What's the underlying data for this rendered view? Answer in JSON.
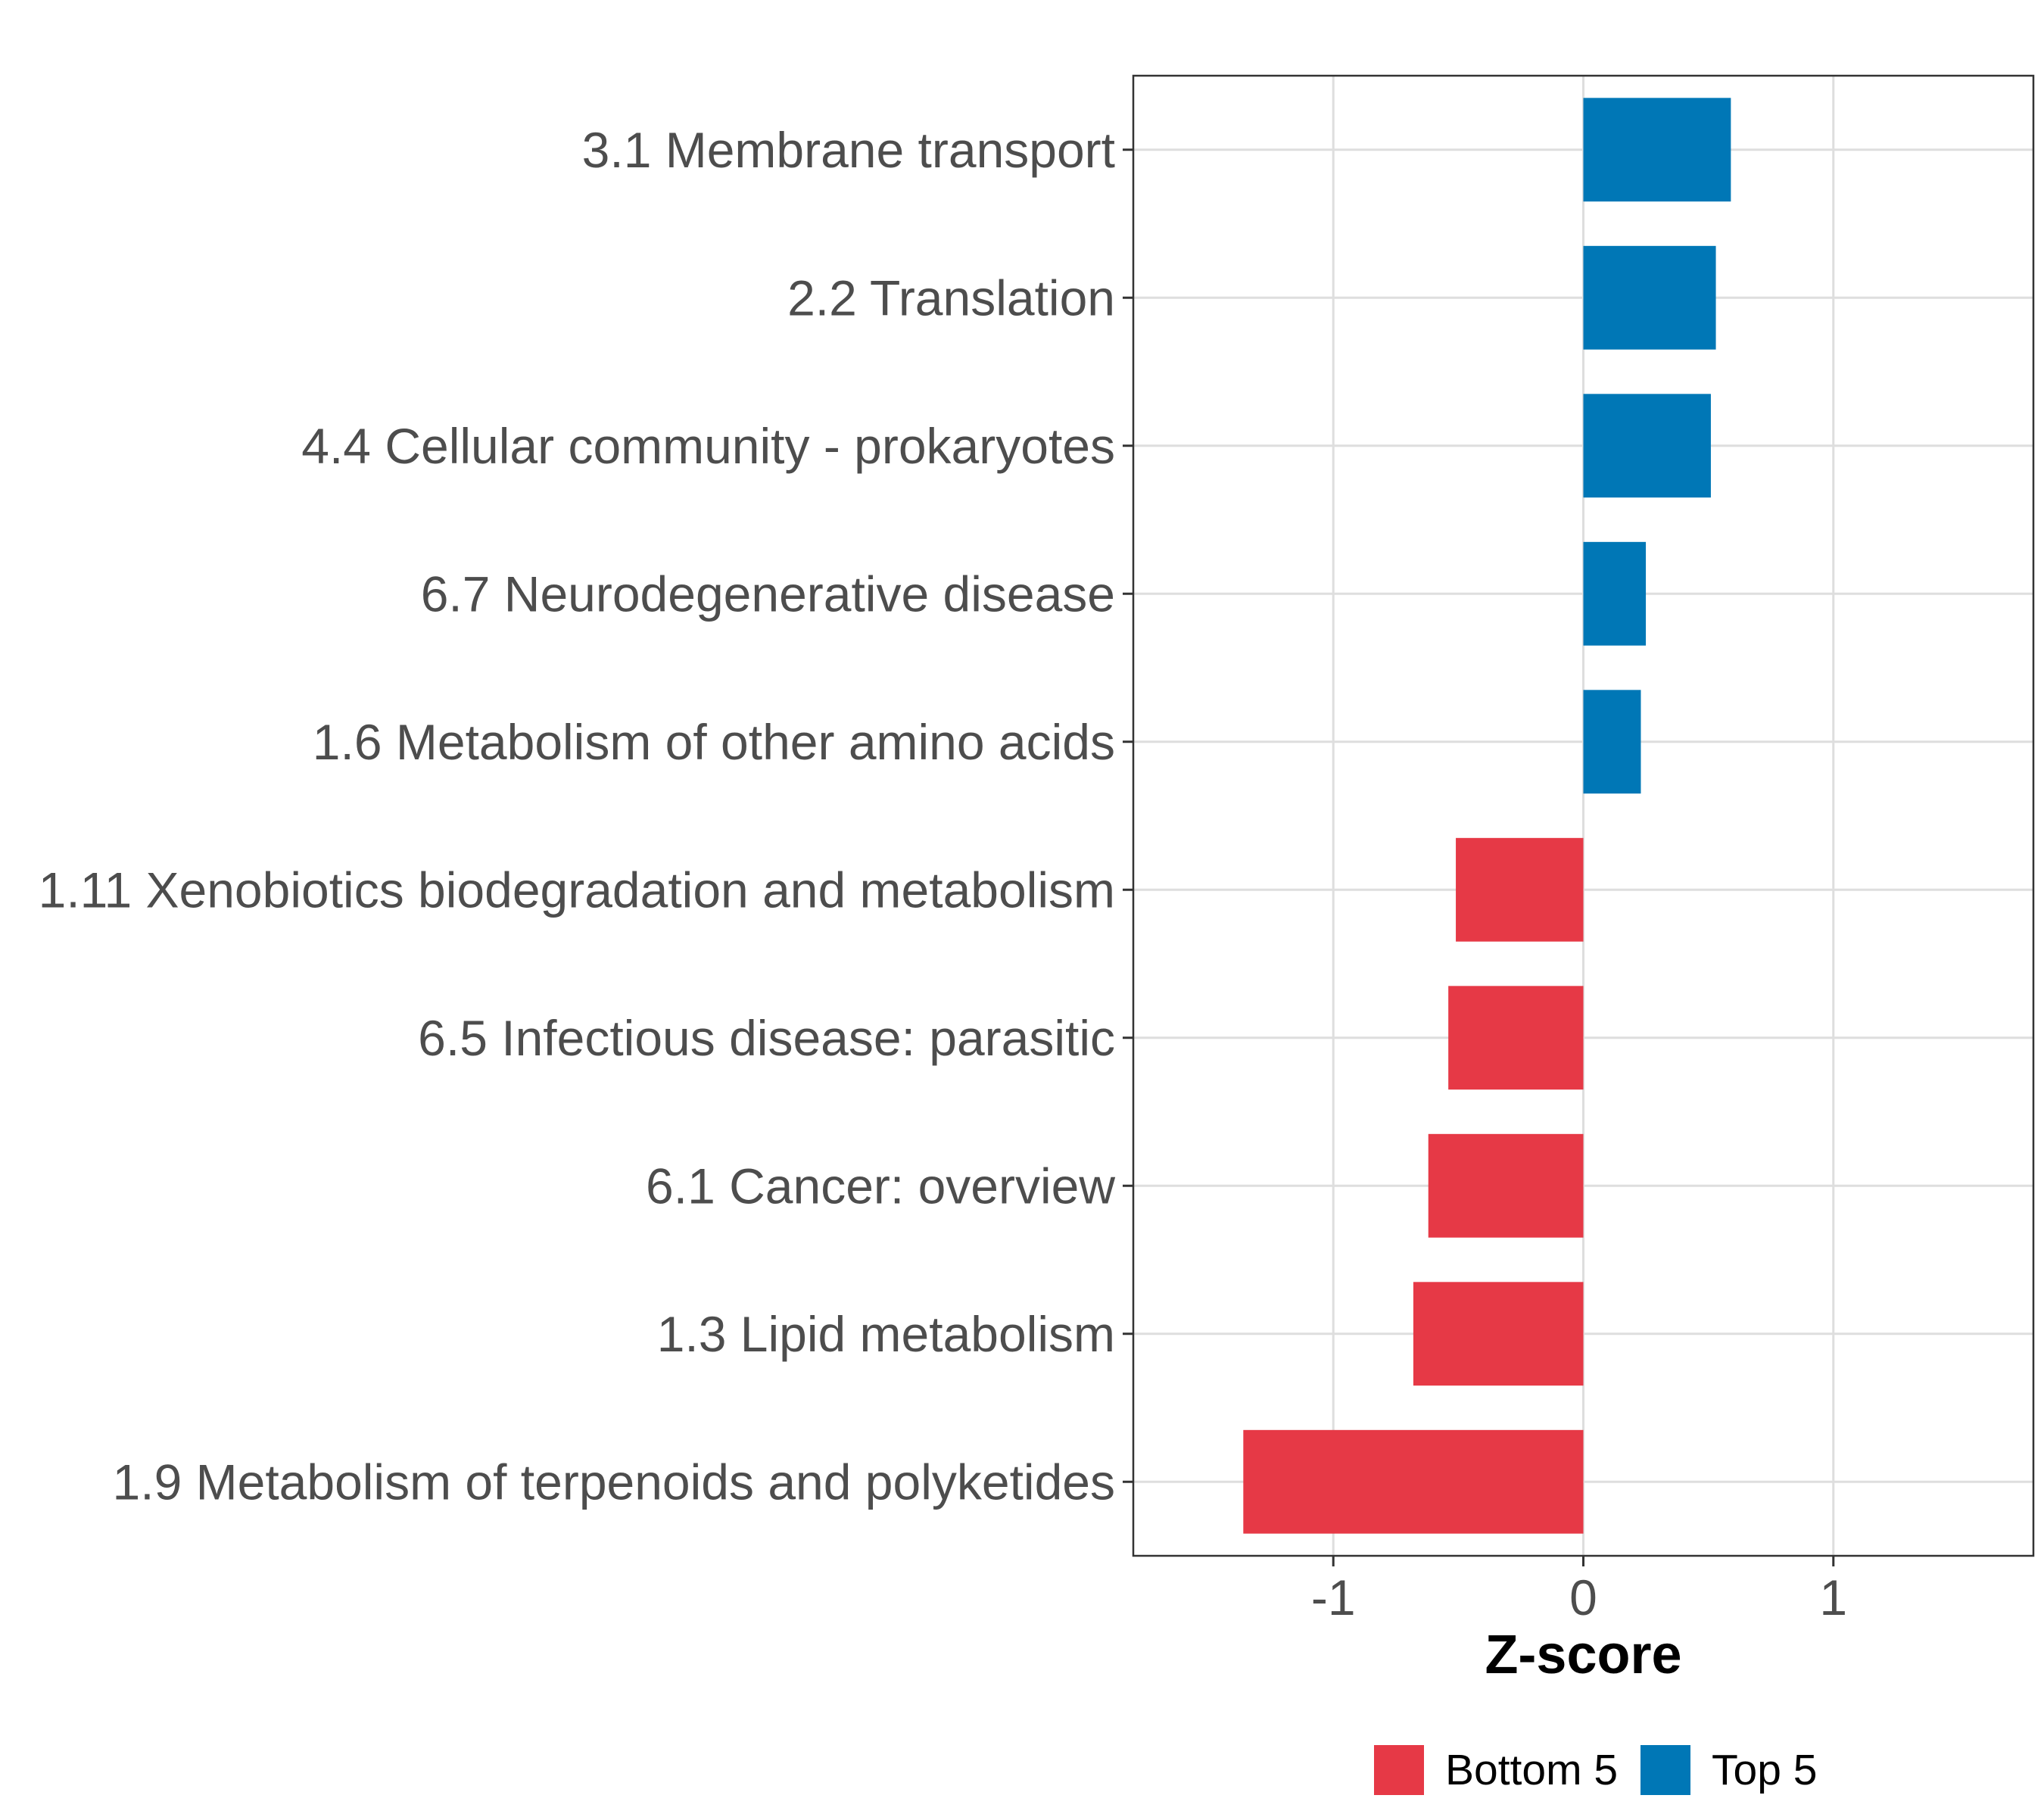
{
  "chart_data": {
    "type": "bar",
    "orientation": "horizontal",
    "title": "",
    "xlabel": "Z-score",
    "ylabel": "",
    "xlim": [
      -1.8,
      1.8
    ],
    "x_ticks": [
      -1,
      0,
      1
    ],
    "x_tick_labels": [
      "-1",
      "0",
      "1"
    ],
    "grid": true,
    "categories": [
      "3.1 Membrane transport",
      "2.2 Translation",
      "4.4 Cellular community - prokaryotes",
      "6.7 Neurodegenerative disease",
      "1.6 Metabolism of other amino acids",
      "1.11 Xenobiotics biodegradation and metabolism",
      "6.5 Infectious disease: parasitic",
      "6.1 Cancer: overview",
      "1.3 Lipid metabolism",
      "1.9 Metabolism of terpenoids and polyketides"
    ],
    "values": [
      0.59,
      0.53,
      0.51,
      0.25,
      0.23,
      -0.51,
      -0.54,
      -0.62,
      -0.68,
      -1.36
    ],
    "groups": [
      "Top 5",
      "Top 5",
      "Top 5",
      "Top 5",
      "Top 5",
      "Bottom 5",
      "Bottom 5",
      "Bottom 5",
      "Bottom 5",
      "Bottom 5"
    ],
    "legend": {
      "position": "bottom",
      "entries": [
        {
          "name": "Bottom 5",
          "color": "#e63946"
        },
        {
          "name": "Top 5",
          "color": "#0077b6"
        }
      ]
    }
  }
}
